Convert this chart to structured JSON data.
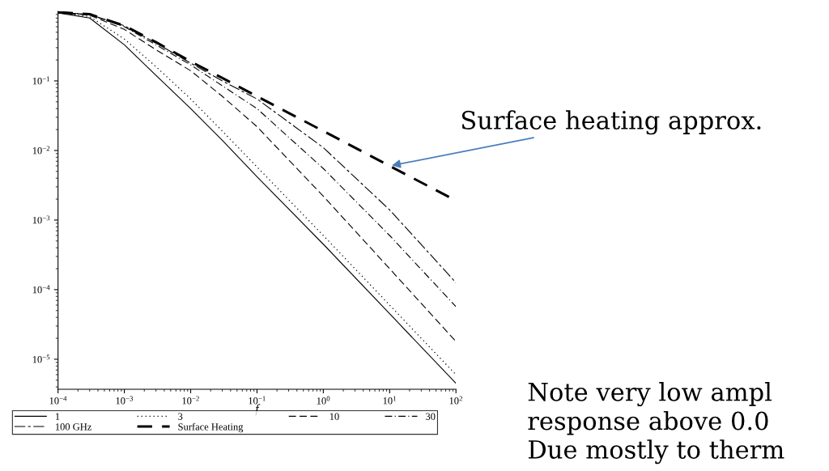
{
  "chart_data": {
    "type": "line",
    "xlabel": "f",
    "log": "xy",
    "x": [
      0.0001,
      0.0003,
      0.001,
      0.003,
      0.01,
      0.03,
      0.1,
      1,
      10,
      100
    ],
    "series": [
      {
        "name": "1",
        "color": "#000000",
        "line_style": "solid",
        "values": [
          0.95,
          0.8,
          0.33,
          0.12,
          0.04,
          0.014,
          0.0042,
          0.00045,
          4.5e-05,
          4.5e-06
        ]
      },
      {
        "name": "3",
        "color": "#000000",
        "line_style": "dotted",
        "values": [
          0.95,
          0.84,
          0.4,
          0.16,
          0.055,
          0.019,
          0.0058,
          0.0006,
          6e-05,
          6e-06
        ]
      },
      {
        "name": "10",
        "color": "#000000",
        "line_style": "dashed",
        "values": [
          0.96,
          0.88,
          0.55,
          0.28,
          0.14,
          0.06,
          0.022,
          0.0022,
          0.0002,
          1.8e-05
        ]
      },
      {
        "name": "30",
        "color": "#000000",
        "line_style": "dashdot",
        "values": [
          0.97,
          0.9,
          0.6,
          0.33,
          0.17,
          0.085,
          0.04,
          0.0055,
          0.0006,
          5.7e-05
        ]
      },
      {
        "name": "100 GHz",
        "color": "#000000",
        "line_style": "longdash",
        "values": [
          0.97,
          0.9,
          0.62,
          0.35,
          0.18,
          0.1,
          0.055,
          0.011,
          0.0014,
          0.000126
        ]
      },
      {
        "name": "Surface Heating",
        "color": "#000000",
        "line_style": "thickdash",
        "values": [
          0.97,
          0.91,
          0.62,
          0.36,
          0.19,
          0.11,
          0.06,
          0.019,
          0.006,
          0.0019
        ]
      }
    ],
    "xlim": [
      0.0001,
      100
    ],
    "xticks": [
      {
        "value": 0.0001,
        "label": "10$^{−4}$"
      },
      {
        "value": 0.001,
        "label": "10$^{−3}$"
      },
      {
        "value": 0.01,
        "label": "10$^{−2}$"
      },
      {
        "value": 0.1,
        "label": "10$^{−1}$"
      },
      {
        "value": 1,
        "label": "10$^{0}$"
      },
      {
        "value": 10,
        "label": "10$^{1}$"
      },
      {
        "value": 100,
        "label": "10$^{2}$"
      }
    ],
    "ylim": [
      3.7e-06,
      1.0
    ],
    "yticks": [
      {
        "value": 0.1,
        "label": "10$^{−1}$"
      },
      {
        "value": 0.01,
        "label": "10$^{−2}$"
      },
      {
        "value": 0.001,
        "label": "10$^{−3}$"
      },
      {
        "value": 0.0001,
        "label": "10$^{−4}$"
      },
      {
        "value": 1e-05,
        "label": "10$^{−5}$"
      }
    ],
    "legend": "bottom",
    "annotations": [
      {
        "text": "Surface heating approx.",
        "x": 10,
        "y": 0.006
      },
      "Note very low ampl\nresponse above 0.0\nDue mostly to therm"
    ]
  }
}
